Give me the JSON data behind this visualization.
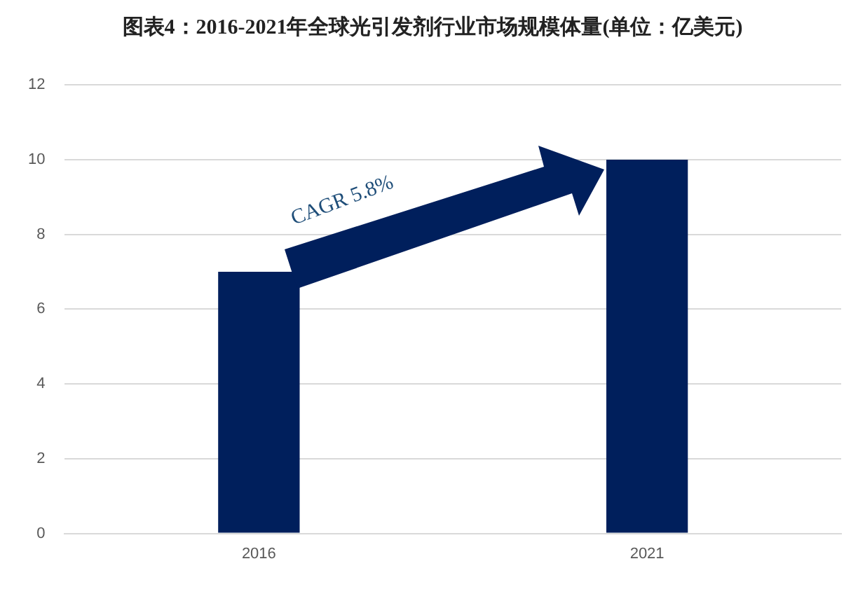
{
  "chart_data": {
    "type": "bar",
    "title": "图表4：2016-2021年全球光引发剂行业市场规模体量(单位：亿美元)",
    "categories": [
      "2016",
      "2021"
    ],
    "values": [
      7,
      10
    ],
    "color": "#001f5c",
    "ylim": [
      0,
      12
    ],
    "yticks": [
      0,
      2,
      4,
      6,
      8,
      10,
      12
    ],
    "grid": "y",
    "annotations": [
      "CAGR 5.8%"
    ]
  }
}
